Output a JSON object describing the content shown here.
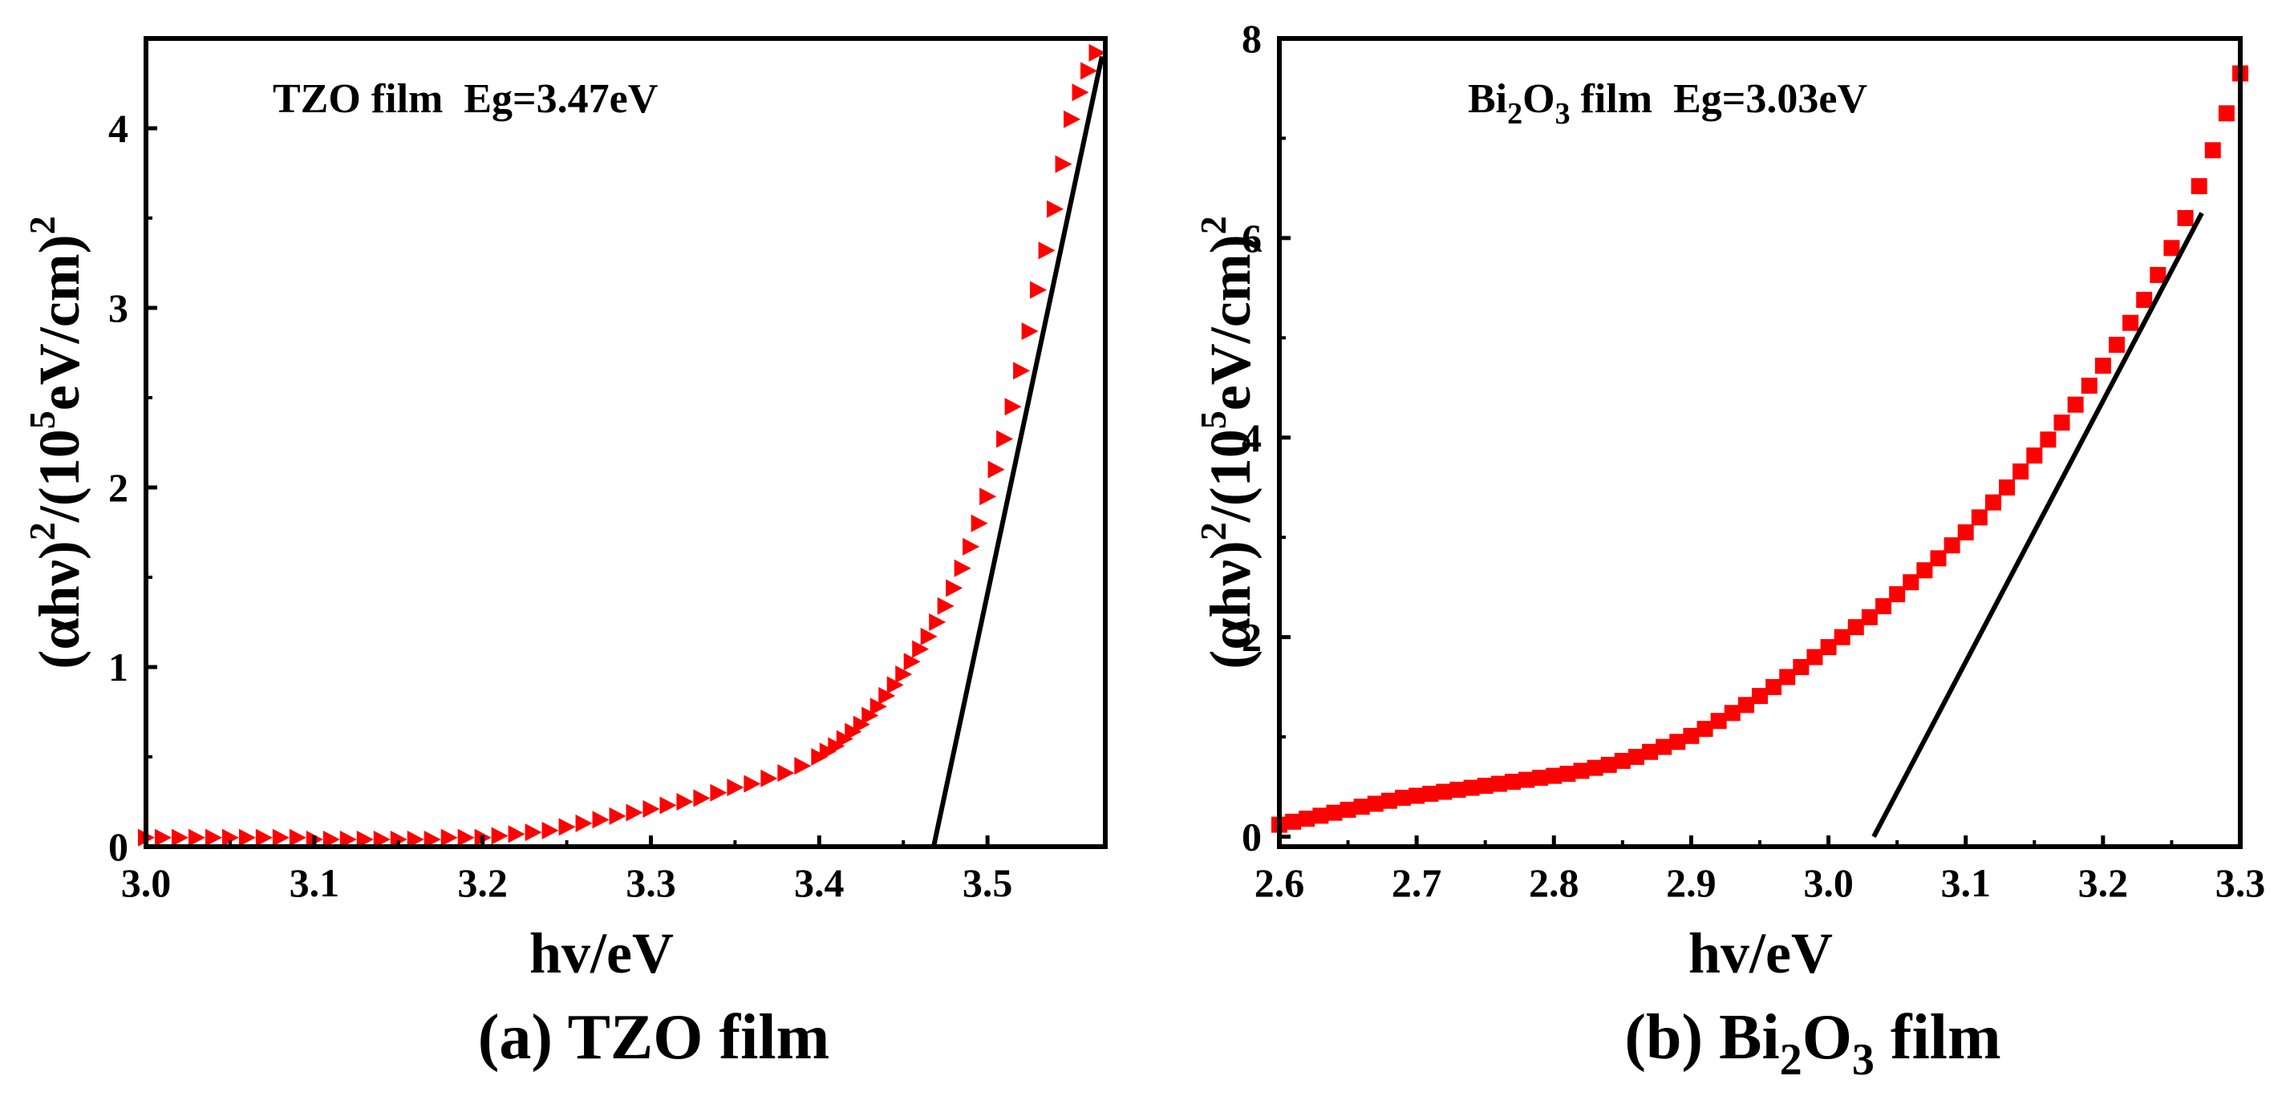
{
  "chart_data": [
    {
      "type": "scatter",
      "panel_id": "a",
      "caption_prefix": "(a) TZO film",
      "annotation": "TZO film  Eg=3.47eV",
      "xlabel": "hv/eV",
      "ylabel": {
        "main": "(αhν)",
        "sup1": "2",
        "mid": "/(10",
        "sup2": "5",
        "tail": "eV/cm)",
        "sup3": "2"
      },
      "xlim": [
        3.0,
        3.57
      ],
      "ylim": [
        0,
        4.5
      ],
      "xticks": [
        3.0,
        3.1,
        3.2,
        3.3,
        3.4,
        3.5
      ],
      "xtick_labels": [
        "3.0",
        "3.1",
        "3.2",
        "3.3",
        "3.4",
        "3.5"
      ],
      "yticks": [
        0,
        1,
        2,
        3,
        4
      ],
      "ytick_labels": [
        "0",
        "1",
        "2",
        "3",
        "4"
      ],
      "marker": "triangle",
      "marker_color": "#ff0000",
      "series": [
        {
          "name": "data",
          "x": [
            3.0,
            3.01,
            3.02,
            3.03,
            3.04,
            3.05,
            3.06,
            3.07,
            3.08,
            3.09,
            3.1,
            3.11,
            3.12,
            3.13,
            3.14,
            3.15,
            3.16,
            3.17,
            3.18,
            3.19,
            3.2,
            3.21,
            3.22,
            3.23,
            3.24,
            3.25,
            3.26,
            3.27,
            3.28,
            3.29,
            3.3,
            3.31,
            3.32,
            3.33,
            3.34,
            3.35,
            3.36,
            3.37,
            3.38,
            3.39,
            3.4,
            3.405,
            3.41,
            3.415,
            3.42,
            3.425,
            3.43,
            3.435,
            3.44,
            3.445,
            3.45,
            3.455,
            3.46,
            3.465,
            3.47,
            3.475,
            3.48,
            3.485,
            3.49,
            3.495,
            3.5,
            3.505,
            3.51,
            3.515,
            3.52,
            3.525,
            3.53,
            3.535,
            3.54,
            3.545,
            3.55,
            3.555,
            3.56,
            3.565
          ],
          "y": [
            0.05,
            0.05,
            0.05,
            0.05,
            0.05,
            0.05,
            0.05,
            0.05,
            0.05,
            0.05,
            0.04,
            0.04,
            0.04,
            0.04,
            0.04,
            0.04,
            0.04,
            0.04,
            0.05,
            0.05,
            0.05,
            0.06,
            0.07,
            0.08,
            0.09,
            0.11,
            0.13,
            0.15,
            0.17,
            0.19,
            0.21,
            0.23,
            0.25,
            0.27,
            0.3,
            0.33,
            0.35,
            0.38,
            0.41,
            0.45,
            0.5,
            0.53,
            0.56,
            0.6,
            0.64,
            0.68,
            0.73,
            0.78,
            0.84,
            0.9,
            0.96,
            1.03,
            1.1,
            1.17,
            1.25,
            1.34,
            1.44,
            1.55,
            1.67,
            1.8,
            1.95,
            2.1,
            2.27,
            2.45,
            2.65,
            2.87,
            3.1,
            3.32,
            3.55,
            3.8,
            4.05,
            4.2,
            4.32,
            4.42
          ]
        }
      ],
      "fit_line": {
        "x": [
          3.468,
          3.568
        ],
        "y": [
          0.0,
          4.4
        ]
      }
    },
    {
      "type": "scatter",
      "panel_id": "b",
      "caption_prefix": "(b) Bi",
      "caption_sub": "2",
      "caption_mid": "O",
      "caption_sub2": "3",
      "caption_tail": " film",
      "annotation": {
        "pre": "Bi",
        "sub1": "2",
        "mid": "O",
        "sub2": "3",
        "tail": " film  Eg=3.03eV"
      },
      "xlabel": "hv/eV",
      "ylabel": {
        "main": "(αhν)",
        "sup1": "2",
        "mid": "/(10",
        "sup2": "5",
        "tail": "eV/cm)",
        "sup3": "2"
      },
      "xlim": [
        2.6,
        3.3
      ],
      "ylim": [
        -0.1,
        8.0
      ],
      "xticks": [
        2.6,
        2.7,
        2.8,
        2.9,
        3.0,
        3.1,
        3.2,
        3.3
      ],
      "xtick_labels": [
        "2.6",
        "2.7",
        "2.8",
        "2.9",
        "3.0",
        "3.1",
        "3.2",
        "3.3"
      ],
      "yticks": [
        0,
        2,
        4,
        6,
        8
      ],
      "ytick_labels": [
        "0",
        "2",
        "4",
        "6",
        "8"
      ],
      "marker": "square",
      "marker_color": "#ff0000",
      "series": [
        {
          "name": "data",
          "x": [
            2.6,
            2.61,
            2.62,
            2.63,
            2.64,
            2.65,
            2.66,
            2.67,
            2.68,
            2.69,
            2.7,
            2.71,
            2.72,
            2.73,
            2.74,
            2.75,
            2.76,
            2.77,
            2.78,
            2.79,
            2.8,
            2.81,
            2.82,
            2.83,
            2.84,
            2.85,
            2.86,
            2.87,
            2.88,
            2.89,
            2.9,
            2.91,
            2.92,
            2.93,
            2.94,
            2.95,
            2.96,
            2.97,
            2.98,
            2.99,
            3.0,
            3.01,
            3.02,
            3.03,
            3.04,
            3.05,
            3.06,
            3.07,
            3.08,
            3.09,
            3.1,
            3.11,
            3.12,
            3.13,
            3.14,
            3.15,
            3.16,
            3.17,
            3.18,
            3.19,
            3.2,
            3.21,
            3.22,
            3.23,
            3.24,
            3.25,
            3.26,
            3.27,
            3.28,
            3.29,
            3.3
          ],
          "y": [
            0.12,
            0.15,
            0.18,
            0.21,
            0.24,
            0.27,
            0.3,
            0.33,
            0.36,
            0.39,
            0.41,
            0.43,
            0.45,
            0.47,
            0.49,
            0.51,
            0.53,
            0.55,
            0.57,
            0.59,
            0.61,
            0.63,
            0.66,
            0.69,
            0.72,
            0.76,
            0.8,
            0.85,
            0.9,
            0.95,
            1.01,
            1.08,
            1.16,
            1.24,
            1.32,
            1.41,
            1.5,
            1.6,
            1.7,
            1.8,
            1.9,
            2.0,
            2.1,
            2.2,
            2.31,
            2.43,
            2.55,
            2.67,
            2.79,
            2.92,
            3.05,
            3.2,
            3.35,
            3.5,
            3.66,
            3.82,
            3.98,
            4.15,
            4.33,
            4.52,
            4.72,
            4.93,
            5.15,
            5.38,
            5.63,
            5.9,
            6.2,
            6.52,
            6.88,
            7.25,
            7.65
          ]
        }
      ],
      "fit_line": {
        "x": [
          3.033,
          3.272
        ],
        "y": [
          0.0,
          6.25
        ]
      }
    }
  ]
}
